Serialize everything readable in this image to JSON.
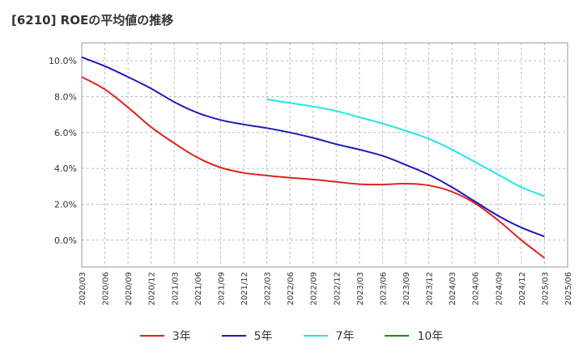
{
  "title": "[6210]  ROEの平均値の推移",
  "chart_data": {
    "type": "line",
    "title": "[6210]  ROEの平均値の推移",
    "categories": [
      "2020/03",
      "2020/06",
      "2020/09",
      "2020/12",
      "2021/03",
      "2021/06",
      "2021/09",
      "2021/12",
      "2022/03",
      "2022/06",
      "2022/09",
      "2022/12",
      "2023/03",
      "2023/06",
      "2023/09",
      "2023/12",
      "2024/03",
      "2024/06",
      "2024/09",
      "2024/12",
      "2025/03",
      "2025/06"
    ],
    "yticks": [
      "0.0%",
      "2.0%",
      "4.0%",
      "6.0%",
      "8.0%",
      "10.0%"
    ],
    "ylim": [
      -1.5,
      11.0
    ],
    "grid": true,
    "legend_position": "bottom",
    "series": [
      {
        "name": "3年",
        "color": "#e02020",
        "values": [
          9.1,
          8.4,
          7.4,
          6.3,
          5.4,
          4.6,
          4.05,
          3.75,
          3.6,
          3.48,
          3.38,
          3.25,
          3.12,
          3.1,
          3.15,
          3.05,
          2.7,
          2.05,
          1.1,
          0.0,
          -1.0,
          null
        ]
      },
      {
        "name": "5年",
        "color": "#1a1ab8",
        "values": [
          10.2,
          9.7,
          9.1,
          8.45,
          7.7,
          7.1,
          6.7,
          6.45,
          6.25,
          6.0,
          5.7,
          5.35,
          5.05,
          4.7,
          4.2,
          3.65,
          2.95,
          2.15,
          1.35,
          0.7,
          0.2,
          null
        ]
      },
      {
        "name": "7年",
        "color": "#22e6e6",
        "values": [
          null,
          null,
          null,
          null,
          null,
          null,
          null,
          null,
          7.85,
          7.65,
          7.45,
          7.2,
          6.85,
          6.5,
          6.1,
          5.65,
          5.05,
          4.35,
          3.65,
          2.95,
          2.45,
          null
        ]
      },
      {
        "name": "10年",
        "color": "#1a8a1a",
        "values": [
          null,
          null,
          null,
          null,
          null,
          null,
          null,
          null,
          null,
          null,
          null,
          null,
          null,
          null,
          null,
          null,
          null,
          null,
          null,
          null,
          null,
          null
        ]
      }
    ]
  }
}
